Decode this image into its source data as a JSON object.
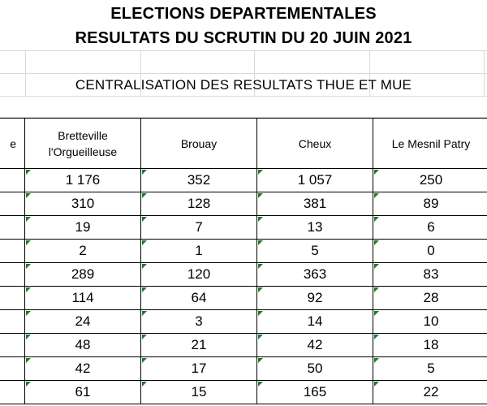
{
  "title_line1": "ELECTIONS DEPARTEMENTALES",
  "title_line2": "RESULTATS DU SCRUTIN DU 20 JUIN 2021",
  "subtitle": "CENTRALISATION DES RESULTATS THUE ET MUE",
  "columns": {
    "cut_label": "e",
    "c1_line1": "Bretteville",
    "c1_line2": "l'Orgueilleuse",
    "c2": "Brouay",
    "c3": "Cheux",
    "c4": "Le Mesnil Patry"
  },
  "rows": [
    [
      "1 176",
      "352",
      "1 057",
      "250"
    ],
    [
      "310",
      "128",
      "381",
      "89"
    ],
    [
      "19",
      "7",
      "13",
      "6"
    ],
    [
      "2",
      "1",
      "5",
      "0"
    ],
    [
      "289",
      "120",
      "363",
      "83"
    ],
    [
      "114",
      "64",
      "92",
      "28"
    ],
    [
      "24",
      "3",
      "14",
      "10"
    ],
    [
      "48",
      "21",
      "42",
      "18"
    ],
    [
      "42",
      "17",
      "50",
      "5"
    ],
    [
      "61",
      "15",
      "165",
      "22"
    ]
  ],
  "colors": {
    "note_marker": "#1e7a2a",
    "grid": "#d9d9d9",
    "border": "#000000"
  }
}
